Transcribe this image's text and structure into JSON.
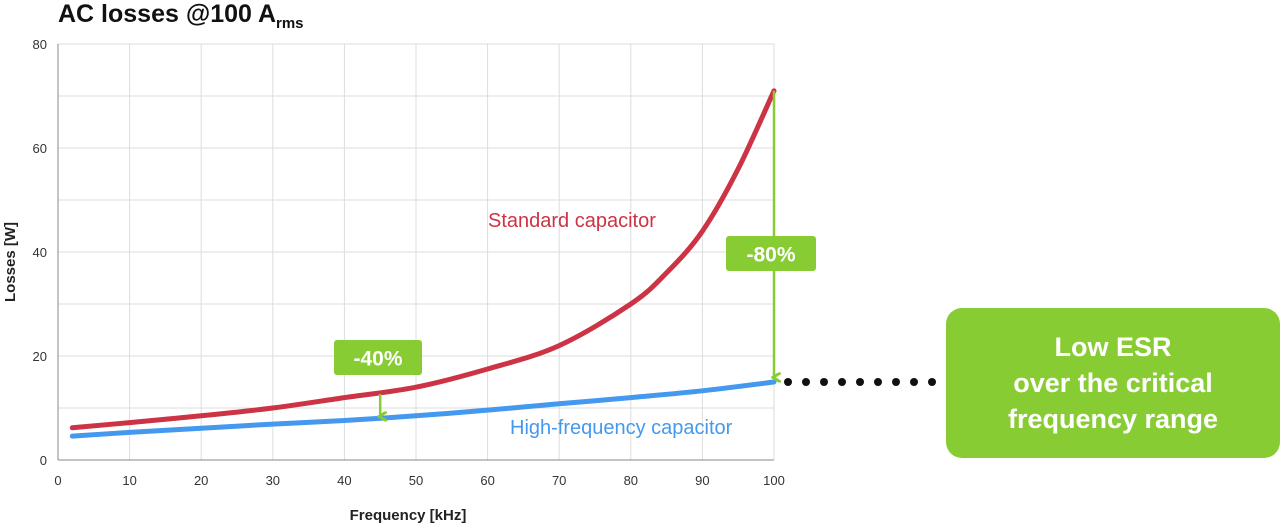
{
  "title": {
    "main": "AC losses @100 A",
    "sub": "rms"
  },
  "callout": {
    "lines": [
      "Low ESR",
      "over the critical",
      "frequency range"
    ]
  },
  "colors": {
    "standard": "#cc3344",
    "high_frequency": "#4499ee",
    "accent": "#88cc33",
    "grid": "#dddddd",
    "dots": "#111111"
  },
  "chart_data": {
    "type": "line",
    "xlabel": "Frequency [kHz]",
    "ylabel": "Losses [W]",
    "xlim": [
      0,
      100
    ],
    "ylim": [
      0,
      80
    ],
    "xticks": [
      0,
      10,
      20,
      30,
      40,
      50,
      60,
      70,
      80,
      90,
      100
    ],
    "yticks": [
      0,
      20,
      40,
      60,
      80
    ],
    "grid": true,
    "series": [
      {
        "name": "Standard capacitor",
        "color": "#cc3344",
        "x": [
          2,
          10,
          20,
          30,
          40,
          50,
          60,
          70,
          80,
          85,
          90,
          95,
          100
        ],
        "y": [
          6.2,
          7.2,
          8.5,
          10,
          12,
          14,
          17.5,
          22,
          30,
          36,
          44,
          56,
          71
        ]
      },
      {
        "name": "High-frequency capacitor",
        "color": "#4499ee",
        "x": [
          2,
          10,
          20,
          30,
          40,
          50,
          60,
          70,
          80,
          90,
          100
        ],
        "y": [
          4.6,
          5.3,
          6.1,
          6.9,
          7.6,
          8.5,
          9.6,
          10.8,
          12.0,
          13.3,
          15.0
        ]
      }
    ],
    "annotations": [
      {
        "text": "-40%",
        "x": 45,
        "y_from": 12.7,
        "y_to": 8.0
      },
      {
        "text": "-80%",
        "x": 100,
        "y_from": 71,
        "y_to": 15.5
      }
    ]
  }
}
